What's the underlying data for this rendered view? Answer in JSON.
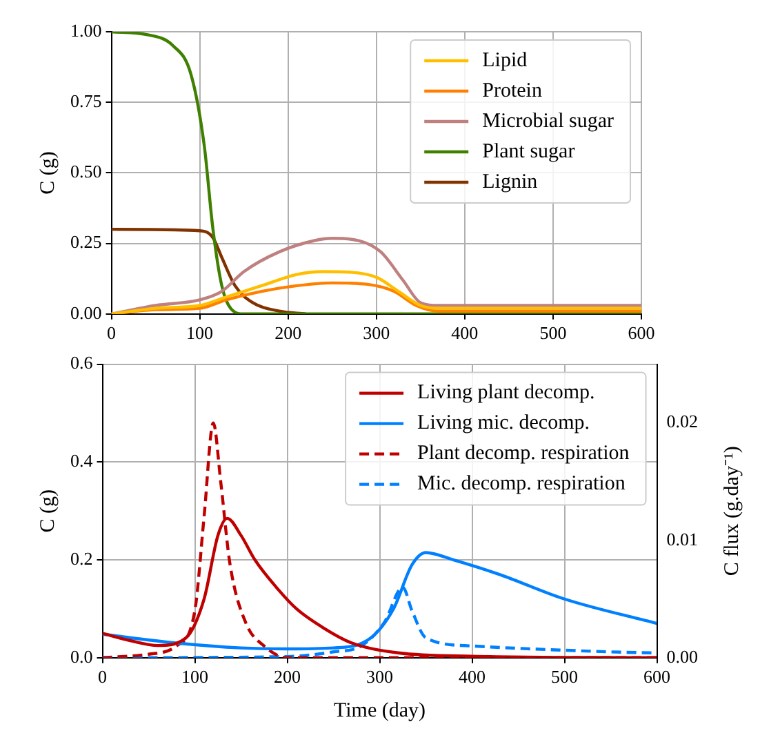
{
  "chart_data": [
    {
      "type": "line",
      "ylabel": "C (g)",
      "xlim": [
        0,
        600
      ],
      "xticks": [
        0,
        100,
        200,
        300,
        400,
        500,
        600
      ],
      "ylim": [
        0,
        1
      ],
      "yticks": [
        {
          "value": 0,
          "label": "0.00"
        },
        {
          "value": 0.25,
          "label": "0.25"
        },
        {
          "value": 0.5,
          "label": "0.50"
        },
        {
          "value": 0.75,
          "label": "0.75"
        },
        {
          "value": 1,
          "label": "1.00"
        }
      ],
      "grid": true,
      "legend": "top right",
      "series": [
        {
          "name": "Lipid",
          "color": "#ffbf00",
          "x": [
            0,
            50,
            100,
            130,
            170,
            210,
            240,
            270,
            300,
            325,
            350,
            370,
            600
          ],
          "values": [
            0,
            0.02,
            0.03,
            0.06,
            0.1,
            0.14,
            0.15,
            0.148,
            0.13,
            0.08,
            0.03,
            0.02,
            0.02
          ]
        },
        {
          "name": "Protein",
          "color": "#ff8000",
          "x": [
            0,
            50,
            100,
            130,
            170,
            210,
            250,
            290,
            320,
            345,
            370,
            600
          ],
          "values": [
            0,
            0.015,
            0.02,
            0.05,
            0.08,
            0.1,
            0.11,
            0.105,
            0.08,
            0.03,
            0.01,
            0.01
          ]
        },
        {
          "name": "Microbial sugar",
          "color": "#bf8080",
          "x": [
            0,
            50,
            100,
            125,
            150,
            190,
            230,
            250,
            280,
            305,
            330,
            350,
            370,
            600
          ],
          "values": [
            0,
            0.03,
            0.05,
            0.08,
            0.15,
            0.22,
            0.26,
            0.268,
            0.26,
            0.22,
            0.12,
            0.04,
            0.03,
            0.03
          ]
        },
        {
          "name": "Plant sugar",
          "color": "#408000",
          "x": [
            0,
            40,
            70,
            90,
            105,
            115,
            125,
            135,
            150,
            600
          ],
          "values": [
            1,
            0.99,
            0.95,
            0.85,
            0.6,
            0.3,
            0.1,
            0.02,
            0,
            0
          ]
        },
        {
          "name": "Lignin",
          "color": "#803300",
          "x": [
            0,
            100,
            115,
            125,
            140,
            160,
            190,
            220
          ],
          "values": [
            0.3,
            0.295,
            0.27,
            0.2,
            0.1,
            0.04,
            0.01,
            0
          ]
        }
      ]
    },
    {
      "type": "line",
      "xlabel": "Time (day)",
      "ylabel": "C (g)",
      "y2label": "C flux (g.day⁻¹)",
      "xlim": [
        0,
        600
      ],
      "xticks": [
        0,
        100,
        200,
        300,
        400,
        500,
        600
      ],
      "ylim": [
        0,
        0.6
      ],
      "yticks": [
        {
          "value": 0,
          "label": "0.0"
        },
        {
          "value": 0.2,
          "label": "0.2"
        },
        {
          "value": 0.4,
          "label": "0.4"
        },
        {
          "value": 0.6,
          "label": "0.6"
        }
      ],
      "y2lim": [
        0,
        0.025
      ],
      "y2ticks": [
        {
          "value": 0,
          "label": "0.00"
        },
        {
          "value": 0.01,
          "label": "0.01"
        },
        {
          "value": 0.02,
          "label": "0.02"
        }
      ],
      "grid": true,
      "legend": "top right",
      "series": [
        {
          "name": "Living plant decomp.",
          "color": "#bf0000",
          "x": [
            0,
            30,
            60,
            90,
            110,
            125,
            135,
            150,
            165,
            190,
            210,
            240,
            270,
            320,
            400,
            600
          ],
          "values": [
            0.05,
            0.035,
            0.025,
            0.04,
            0.12,
            0.25,
            0.285,
            0.25,
            0.2,
            0.14,
            0.1,
            0.06,
            0.03,
            0.01,
            0.003,
            0
          ]
        },
        {
          "name": "Living mic. decomp.",
          "color": "#0080ff",
          "x": [
            0,
            80,
            150,
            200,
            250,
            290,
            315,
            335,
            350,
            380,
            430,
            500,
            600
          ],
          "values": [
            0.048,
            0.03,
            0.02,
            0.018,
            0.02,
            0.04,
            0.1,
            0.19,
            0.215,
            0.2,
            0.17,
            0.12,
            0.07
          ]
        },
        {
          "name": "Plant decomp. respiration",
          "color": "#bf0000",
          "axis": "y2",
          "line_style": "dashed",
          "x": [
            0,
            50,
            80,
            100,
            110,
            120,
            128,
            138,
            155,
            175,
            200,
            600
          ],
          "values": [
            0,
            0.0003,
            0.001,
            0.004,
            0.012,
            0.02,
            0.015,
            0.008,
            0.003,
            0.001,
            0,
            0
          ]
        },
        {
          "name": "Mic. decomp. respiration",
          "color": "#0080ff",
          "axis": "y2",
          "line_style": "dashed",
          "x": [
            0,
            200,
            250,
            280,
            305,
            325,
            335,
            350,
            400,
            450,
            550,
            600
          ],
          "values": [
            0,
            0.0001,
            0.0005,
            0.001,
            0.003,
            0.006,
            0.004,
            0.0017,
            0.001,
            0.0008,
            0.0005,
            0.0004
          ]
        }
      ]
    }
  ]
}
